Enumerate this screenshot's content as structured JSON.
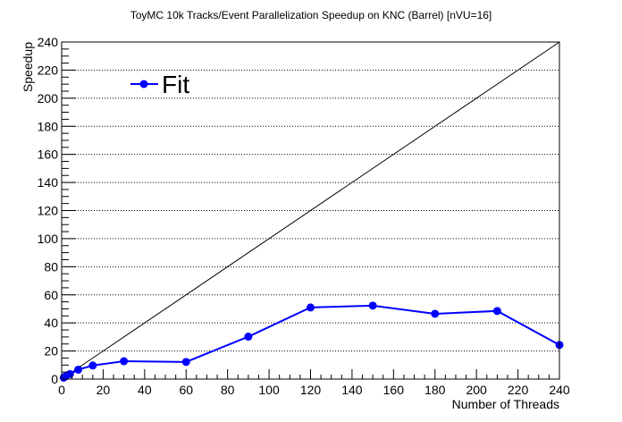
{
  "chart_data": {
    "type": "line",
    "title": "ToyMC 10k Tracks/Event Parallelization Speedup on KNC (Barrel) [nVU=16]",
    "xlabel": "Number of Threads",
    "ylabel": "Speedup",
    "xlim": [
      0,
      240
    ],
    "ylim": [
      0,
      240
    ],
    "xticks": [
      0,
      20,
      40,
      60,
      80,
      100,
      120,
      140,
      160,
      180,
      200,
      220,
      240
    ],
    "yticks": [
      0,
      20,
      40,
      60,
      80,
      100,
      120,
      140,
      160,
      180,
      200,
      220,
      240
    ],
    "grid_y": true,
    "grid_x": false,
    "legend_position": "top-left",
    "colors": {
      "series": "#0000ff",
      "ideal": "#000000"
    },
    "series": [
      {
        "name": "Fit",
        "x": [
          1,
          2,
          4,
          8,
          15,
          30,
          60,
          90,
          120,
          150,
          180,
          210,
          240
        ],
        "y": [
          1,
          2,
          3.6,
          6.7,
          9.7,
          12.7,
          12.2,
          30.2,
          51,
          52.3,
          46.5,
          48.5,
          24.3
        ]
      }
    ],
    "reference_line": {
      "x": [
        0,
        240
      ],
      "y": [
        0,
        240
      ]
    }
  }
}
